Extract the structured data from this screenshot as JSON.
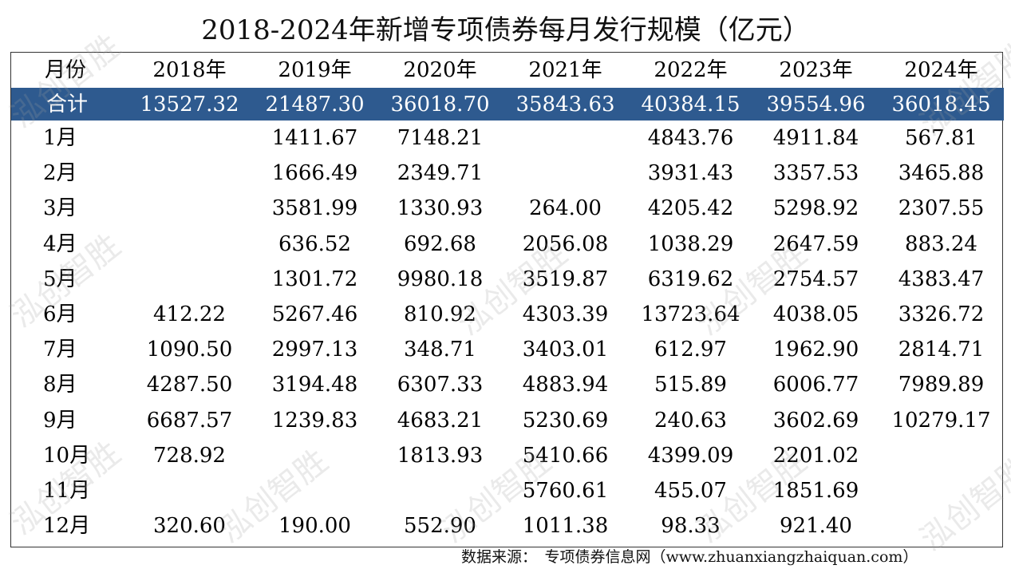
{
  "title": "2018-2024年新增专项债券每月发行规模（亿元）",
  "header": {
    "month_label": "月份",
    "years": [
      "2018年",
      "2019年",
      "2020年",
      "2021年",
      "2022年",
      "2023年",
      "2024年"
    ]
  },
  "total": {
    "label": "合计",
    "values": [
      "13527.32",
      "21487.30",
      "36018.70",
      "35843.63",
      "40384.15",
      "39554.96",
      "36018.45"
    ]
  },
  "rows": [
    {
      "month": "1月",
      "values": [
        "",
        "1411.67",
        "7148.21",
        "",
        "4843.76",
        "4911.84",
        "567.81"
      ]
    },
    {
      "month": "2月",
      "values": [
        "",
        "1666.49",
        "2349.71",
        "",
        "3931.43",
        "3357.53",
        "3465.88"
      ]
    },
    {
      "month": "3月",
      "values": [
        "",
        "3581.99",
        "1330.93",
        "264.00",
        "4205.42",
        "5298.92",
        "2307.55"
      ]
    },
    {
      "month": "4月",
      "values": [
        "",
        "636.52",
        "692.68",
        "2056.08",
        "1038.29",
        "2647.59",
        "883.24"
      ]
    },
    {
      "month": "5月",
      "values": [
        "",
        "1301.72",
        "9980.18",
        "3519.87",
        "6319.62",
        "2754.57",
        "4383.47"
      ]
    },
    {
      "month": "6月",
      "values": [
        "412.22",
        "5267.46",
        "810.92",
        "4303.39",
        "13723.64",
        "4038.05",
        "3326.72"
      ]
    },
    {
      "month": "7月",
      "values": [
        "1090.50",
        "2997.13",
        "348.71",
        "3403.01",
        "612.97",
        "1962.90",
        "2814.71"
      ]
    },
    {
      "month": "8月",
      "values": [
        "4287.50",
        "3194.48",
        "6307.33",
        "4883.94",
        "515.89",
        "6006.77",
        "7989.89"
      ]
    },
    {
      "month": "9月",
      "values": [
        "6687.57",
        "1239.83",
        "4683.21",
        "5230.69",
        "240.63",
        "3602.69",
        "10279.17"
      ]
    },
    {
      "month": "10月",
      "values": [
        "728.92",
        "",
        "1813.93",
        "5410.66",
        "4399.09",
        "2201.02",
        ""
      ]
    },
    {
      "month": "11月",
      "values": [
        "",
        "",
        "",
        "5760.61",
        "455.07",
        "1851.69",
        ""
      ]
    },
    {
      "month": "12月",
      "values": [
        "320.60",
        "190.00",
        "552.90",
        "1011.38",
        "98.33",
        "921.40",
        ""
      ]
    }
  ],
  "source": "数据来源：　专项债券信息网（www.zhuanxiangzhaiquan.com）",
  "watermark": "泓创智胜",
  "colors": {
    "total_row_bg": "#2e5a8f",
    "total_row_text": "#ffffff"
  }
}
